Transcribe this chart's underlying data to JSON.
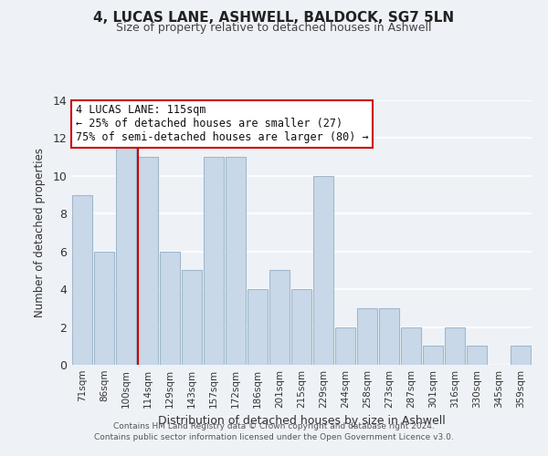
{
  "title": "4, LUCAS LANE, ASHWELL, BALDOCK, SG7 5LN",
  "subtitle": "Size of property relative to detached houses in Ashwell",
  "xlabel": "Distribution of detached houses by size in Ashwell",
  "ylabel": "Number of detached properties",
  "bar_labels": [
    "71sqm",
    "86sqm",
    "100sqm",
    "114sqm",
    "129sqm",
    "143sqm",
    "157sqm",
    "172sqm",
    "186sqm",
    "201sqm",
    "215sqm",
    "229sqm",
    "244sqm",
    "258sqm",
    "273sqm",
    "287sqm",
    "301sqm",
    "316sqm",
    "330sqm",
    "345sqm",
    "359sqm"
  ],
  "bar_values": [
    9,
    6,
    12,
    11,
    6,
    5,
    11,
    11,
    4,
    5,
    4,
    10,
    2,
    3,
    3,
    2,
    1,
    2,
    1,
    0,
    1
  ],
  "bar_color": "#c8d8e8",
  "bar_edge_color": "#a0b8cc",
  "highlight_line_color": "#cc0000",
  "highlight_bar_index": 3,
  "annotation_title": "4 LUCAS LANE: 115sqm",
  "annotation_line1": "← 25% of detached houses are smaller (27)",
  "annotation_line2": "75% of semi-detached houses are larger (80) →",
  "annotation_box_color": "#ffffff",
  "annotation_box_edge": "#cc0000",
  "ylim": [
    0,
    14
  ],
  "yticks": [
    0,
    2,
    4,
    6,
    8,
    10,
    12,
    14
  ],
  "background_color": "#eef2f7",
  "grid_color": "#ffffff",
  "footer1": "Contains HM Land Registry data © Crown copyright and database right 2024.",
  "footer2": "Contains public sector information licensed under the Open Government Licence v3.0."
}
